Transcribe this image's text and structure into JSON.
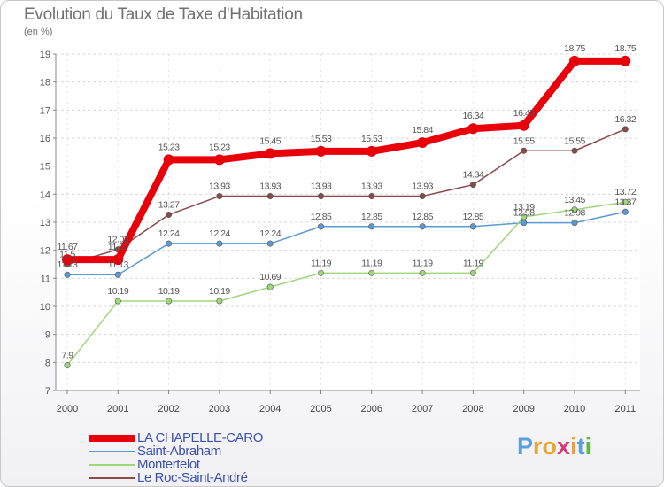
{
  "title": "Evolution du Taux de Taxe d'Habitation",
  "unit": "(en %)",
  "logo": {
    "letters": [
      "P",
      "r",
      "o",
      "x",
      "i",
      "t",
      "i"
    ],
    "colors": [
      "#5aa0dc",
      "#f0a030",
      "#e8a838",
      "#d83878",
      "#f0a030",
      "#5aa0dc",
      "#60b848"
    ]
  },
  "chart_data": {
    "type": "line",
    "title": "Evolution du Taux de Taxe d'Habitation",
    "ylabel": "(en %)",
    "xlabel": "",
    "ylim": [
      7,
      19
    ],
    "yticks": [
      "7",
      "8",
      "9",
      "10",
      "11",
      "12",
      "13",
      "14",
      "15",
      "16",
      "17",
      "18",
      "19"
    ],
    "categories": [
      "2000",
      "2001",
      "2002",
      "2003",
      "2004",
      "2005",
      "2006",
      "2007",
      "2008",
      "2009",
      "2010",
      "2011"
    ],
    "series": [
      {
        "name": "LA CHAPELLE-CARO",
        "color": "#e8000a",
        "values": [
          11.67,
          11.67,
          15.23,
          15.23,
          15.45,
          15.53,
          15.53,
          15.84,
          16.34,
          16.45,
          18.75,
          18.75
        ],
        "labels": [
          "11.67",
          "11.67",
          "15.23",
          "15.23",
          "15.45",
          "15.53",
          "15.53",
          "15.84",
          "16.34",
          "16.45",
          "18.75",
          "18.75"
        ]
      },
      {
        "name": "Saint-Abraham",
        "color": "#5b9ad4",
        "values": [
          11.13,
          11.13,
          12.24,
          12.24,
          12.24,
          12.85,
          12.85,
          12.85,
          12.85,
          12.98,
          12.98,
          13.37
        ],
        "labels": [
          "11.13",
          "11.13",
          "12.24",
          "12.24",
          "12.24",
          "12.85",
          "12.85",
          "12.85",
          "12.85",
          "12.98",
          "12.98",
          "13.37"
        ]
      },
      {
        "name": "Montertelot",
        "color": "#9ed87a",
        "values": [
          7.9,
          10.19,
          10.19,
          10.19,
          10.69,
          11.19,
          11.19,
          11.19,
          11.19,
          13.19,
          13.45,
          13.72
        ],
        "labels": [
          "7.9",
          "10.19",
          "10.19",
          "10.19",
          "10.69",
          "11.19",
          "11.19",
          "11.19",
          "11.19",
          "13.19",
          "13.45",
          "13.72"
        ]
      },
      {
        "name": "Le Roc-Saint-André",
        "color": "#8a4a4a",
        "values": [
          11.5,
          12.03,
          13.27,
          13.93,
          13.93,
          13.93,
          13.93,
          13.93,
          14.34,
          15.55,
          15.55,
          16.32
        ],
        "labels": [
          "11.5",
          "12.03",
          "13.27",
          "13.93",
          "13.93",
          "13.93",
          "13.93",
          "13.93",
          "14.34",
          "15.55",
          "15.55",
          "16.32"
        ]
      }
    ],
    "legend": "bottom-left"
  }
}
